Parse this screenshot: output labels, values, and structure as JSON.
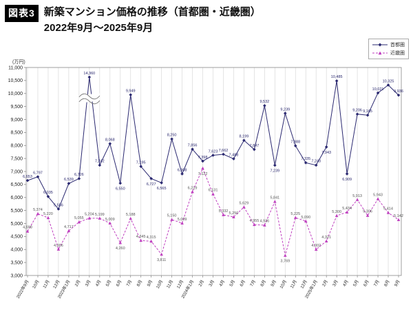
{
  "header": {
    "badge": "図表3",
    "title_line1": "新築マンション価格の推移（首都圏・近畿圏）",
    "title_line2": "2022年9月～2025年9月"
  },
  "y_axis": {
    "unit_label": "(万円)",
    "min": 3000,
    "max": 11000,
    "step": 500
  },
  "legend": {
    "items": [
      {
        "label": "首都圏",
        "color": "#2a2870",
        "marker": "diamond",
        "line": "solid"
      },
      {
        "label": "近畿圏",
        "color": "#bf3fbf",
        "marker": "triangle",
        "line": "dashed"
      }
    ]
  },
  "chart_data": {
    "type": "line",
    "title": "新築マンション価格の推移（首都圏・近畿圏） 2022年9月～2025年9月",
    "xlabel": "",
    "ylabel": "(万円)",
    "ylim": [
      3000,
      11000
    ],
    "ytick_step": 500,
    "grid": "vertical",
    "legend_position": "top-right",
    "categories": [
      "2022年9月",
      "10月",
      "11月",
      "12月",
      "2023年1月",
      "2月",
      "3月",
      "4月",
      "5月",
      "6月",
      "7月",
      "8月",
      "9月",
      "10月",
      "11月",
      "12月",
      "2024年1月",
      "2月",
      "3月",
      "4月",
      "5月",
      "6月",
      "7月",
      "8月",
      "9月",
      "10月",
      "11月",
      "12月",
      "2025年1月",
      "2月",
      "3月",
      "4月",
      "5月",
      "6月",
      "7月",
      "8月",
      "9月"
    ],
    "series": [
      {
        "name": "首都圏",
        "color": "#2a2870",
        "marker": "diamond",
        "line_style": "solid",
        "values": [
          6653,
          6797,
          6035,
          5556,
          6539,
          6726,
          14360,
          7242,
          8068,
          6550,
          9949,
          7195,
          6727,
          6565,
          8250,
          6908,
          7856,
          7398,
          7623,
          7662,
          7488,
          8199,
          7847,
          9532,
          7239,
          9239,
          7988,
          7335,
          7243,
          7943,
          10485,
          6909,
          9206,
          9165,
          10021,
          10325,
          9936
        ],
        "label_below": [
          9,
          12,
          13,
          24,
          29,
          31
        ]
      },
      {
        "name": "近畿圏",
        "color": "#bf3fbf",
        "marker": "triangle",
        "line_style": "dashed",
        "values": [
          4698,
          5374,
          5220,
          4006,
          4717,
          5055,
          5204,
          5199,
          5009,
          4260,
          5188,
          4345,
          4315,
          3811,
          5150,
          5009,
          6219,
          7122,
          6131,
          5332,
          5250,
          5629,
          4955,
          4936,
          5841,
          3769,
          5225,
          5090,
          4002,
          4321,
          5300,
          5434,
          5913,
          5306,
          5943,
          5414,
          5142
        ],
        "label_below": [
          9,
          13,
          17,
          25
        ]
      }
    ],
    "annotations": [
      {
        "type": "axis_break",
        "series": "首都圏",
        "category": "2023年3月",
        "category_index": 6,
        "true_value": 14360,
        "note": "値が軸上限(11,000)を超えるため波線の省略記号付きで描画"
      }
    ]
  }
}
